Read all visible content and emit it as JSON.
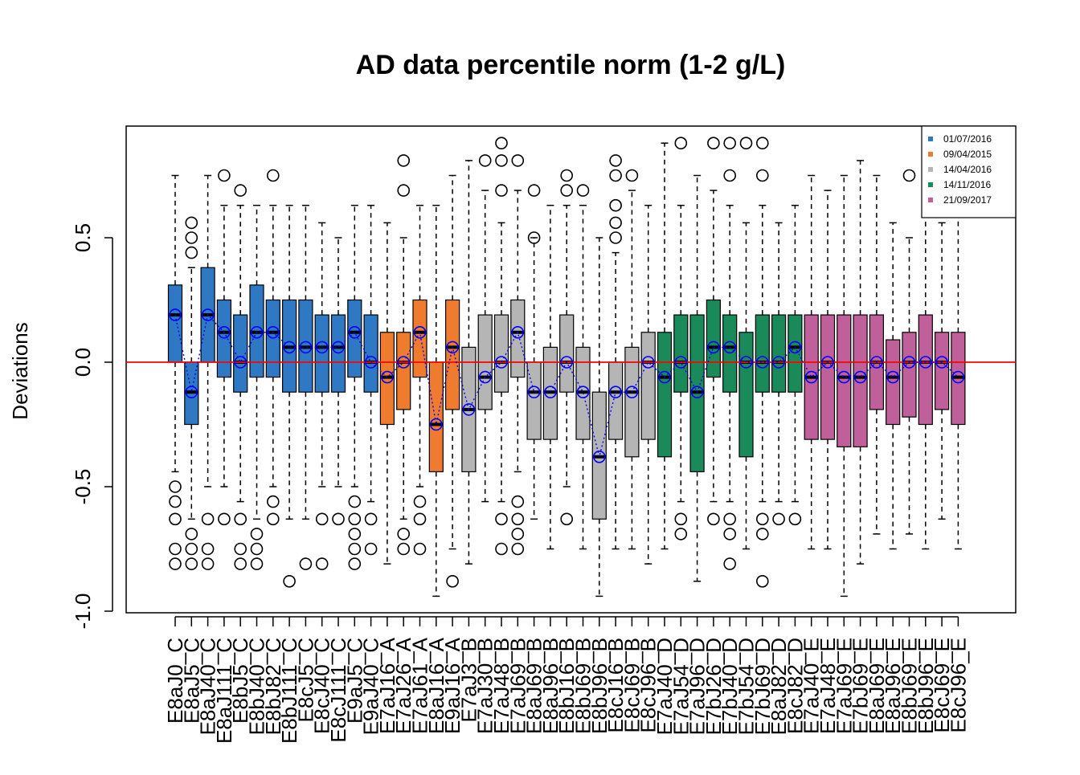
{
  "chart_data": {
    "type": "box",
    "title": "AD data percentile norm (1-2 g/L)",
    "ylabel": "Deviations",
    "xlabel": "",
    "ylim": [
      -1.0,
      0.98
    ],
    "yticks": [
      -1.0,
      -0.5,
      0.0,
      0.5
    ],
    "ytick_labels": [
      "-1.0",
      "-0.5",
      "0.0",
      "0.5"
    ],
    "reference_line": {
      "y": 0.0,
      "color": "#ff0000"
    },
    "mean_line_color": "#0000ff",
    "legend": {
      "position": "top-right",
      "entries": [
        {
          "label": "01/07/2016",
          "color": "#2e78c4"
        },
        {
          "label": "09/04/2015",
          "color": "#ef7b2e"
        },
        {
          "label": "14/04/2016",
          "color": "#b5b5b5"
        },
        {
          "label": "14/11/2016",
          "color": "#1b8a5a"
        },
        {
          "label": "21/09/2017",
          "color": "#c0609a"
        }
      ]
    },
    "groups": {
      "01/07/2016": "#2e78c4",
      "09/04/2015": "#ef7b2e",
      "14/04/2016": "#b5b5b5",
      "14/11/2016": "#1b8a5a",
      "21/09/2017": "#c0609a"
    },
    "boxes": [
      {
        "label": "E8aJ0_C",
        "group": "01/07/2016",
        "q1": 0.0,
        "median": 0.19,
        "q3": 0.31,
        "whisker_low": -0.44,
        "whisker_high": 0.75,
        "mean": 0.19,
        "outliers": [
          -0.5,
          -0.56,
          -0.63,
          -0.75,
          -0.81
        ]
      },
      {
        "label": "E8aJ5_C",
        "group": "01/07/2016",
        "q1": -0.25,
        "median": -0.12,
        "q3": 0.0,
        "whisker_low": -0.63,
        "whisker_high": 0.38,
        "mean": -0.12,
        "outliers": [
          0.44,
          0.5,
          0.56,
          -0.69,
          -0.75,
          -0.81
        ]
      },
      {
        "label": "E8aJ40_C",
        "group": "01/07/2016",
        "q1": 0.0,
        "median": 0.19,
        "q3": 0.38,
        "whisker_low": -0.5,
        "whisker_high": 0.75,
        "mean": 0.19,
        "outliers": [
          -0.63,
          -0.75,
          -0.81
        ]
      },
      {
        "label": "E8aJ111_C",
        "group": "01/07/2016",
        "q1": -0.06,
        "median": 0.12,
        "q3": 0.25,
        "whisker_low": -0.5,
        "whisker_high": 0.63,
        "mean": 0.12,
        "outliers": [
          0.75,
          -0.63
        ]
      },
      {
        "label": "E8bJ5_C",
        "group": "01/07/2016",
        "q1": -0.12,
        "median": 0.0,
        "q3": 0.19,
        "whisker_low": -0.56,
        "whisker_high": 0.63,
        "mean": 0.0,
        "outliers": [
          0.69,
          -0.63,
          -0.75,
          -0.81
        ]
      },
      {
        "label": "E8bJ40_C",
        "group": "01/07/2016",
        "q1": -0.06,
        "median": 0.12,
        "q3": 0.31,
        "whisker_low": -0.63,
        "whisker_high": 0.63,
        "mean": 0.12,
        "outliers": [
          -0.69,
          -0.75,
          -0.81
        ]
      },
      {
        "label": "E8bJ82_C",
        "group": "01/07/2016",
        "q1": -0.06,
        "median": 0.12,
        "q3": 0.25,
        "whisker_low": -0.5,
        "whisker_high": 0.63,
        "mean": 0.12,
        "outliers": [
          0.75,
          -0.56,
          -0.63
        ]
      },
      {
        "label": "E8bJ111_C",
        "group": "01/07/2016",
        "q1": -0.12,
        "median": 0.06,
        "q3": 0.25,
        "whisker_low": -0.63,
        "whisker_high": 0.63,
        "mean": 0.06,
        "outliers": [
          -0.88
        ]
      },
      {
        "label": "E8cJ5_C",
        "group": "01/07/2016",
        "q1": -0.12,
        "median": 0.06,
        "q3": 0.25,
        "whisker_low": -0.63,
        "whisker_high": 0.63,
        "mean": 0.06,
        "outliers": [
          -0.81
        ]
      },
      {
        "label": "E8cJ40_C",
        "group": "01/07/2016",
        "q1": -0.12,
        "median": 0.06,
        "q3": 0.19,
        "whisker_low": -0.5,
        "whisker_high": 0.56,
        "mean": 0.06,
        "outliers": [
          -0.63,
          -0.81
        ]
      },
      {
        "label": "E8cJ111_C",
        "group": "01/07/2016",
        "q1": -0.12,
        "median": 0.06,
        "q3": 0.19,
        "whisker_low": -0.5,
        "whisker_high": 0.5,
        "mean": 0.06,
        "outliers": [
          -0.63
        ]
      },
      {
        "label": "E9aJ5_C",
        "group": "01/07/2016",
        "q1": -0.06,
        "median": 0.12,
        "q3": 0.25,
        "whisker_low": -0.5,
        "whisker_high": 0.63,
        "mean": 0.12,
        "outliers": [
          -0.56,
          -0.63,
          -0.69,
          -0.75,
          -0.81
        ]
      },
      {
        "label": "E9aJ40_C",
        "group": "01/07/2016",
        "q1": -0.12,
        "median": 0.0,
        "q3": 0.19,
        "whisker_low": -0.56,
        "whisker_high": 0.63,
        "mean": 0.0,
        "outliers": [
          -0.63,
          -0.75
        ]
      },
      {
        "label": "E7aJ16_A",
        "group": "09/04/2015",
        "q1": -0.25,
        "median": -0.06,
        "q3": 0.12,
        "whisker_low": -0.81,
        "whisker_high": 0.56,
        "mean": -0.06,
        "outliers": []
      },
      {
        "label": "E7aJ26_A",
        "group": "09/04/2015",
        "q1": -0.19,
        "median": 0.0,
        "q3": 0.12,
        "whisker_low": -0.63,
        "whisker_high": 0.5,
        "mean": 0.0,
        "outliers": [
          0.81,
          0.69,
          -0.69,
          -0.75
        ]
      },
      {
        "label": "E7aJ61_A",
        "group": "09/04/2015",
        "q1": -0.06,
        "median": 0.12,
        "q3": 0.25,
        "whisker_low": -0.5,
        "whisker_high": 0.63,
        "mean": 0.12,
        "outliers": [
          -0.56,
          -0.63,
          -0.75
        ]
      },
      {
        "label": "E8aJ16_A",
        "group": "09/04/2015",
        "q1": -0.44,
        "median": -0.25,
        "q3": 0.0,
        "whisker_low": -0.94,
        "whisker_high": 0.63,
        "mean": -0.25,
        "outliers": []
      },
      {
        "label": "E9aJ16_A",
        "group": "09/04/2015",
        "q1": -0.19,
        "median": 0.06,
        "q3": 0.25,
        "whisker_low": -0.75,
        "whisker_high": 0.75,
        "mean": 0.06,
        "outliers": [
          -0.88
        ]
      },
      {
        "label": "E7aJ3_B",
        "group": "14/04/2016",
        "q1": -0.44,
        "median": -0.19,
        "q3": 0.06,
        "whisker_low": -0.81,
        "whisker_high": 0.81,
        "mean": -0.19,
        "outliers": []
      },
      {
        "label": "E7aJ30_B",
        "group": "14/04/2016",
        "q1": -0.19,
        "median": -0.06,
        "q3": 0.19,
        "whisker_low": -0.56,
        "whisker_high": 0.69,
        "mean": -0.06,
        "outliers": [
          0.81
        ]
      },
      {
        "label": "E7aJ48_B",
        "group": "14/04/2016",
        "q1": -0.12,
        "median": 0.0,
        "q3": 0.19,
        "whisker_low": -0.56,
        "whisker_high": 0.56,
        "mean": 0.0,
        "outliers": [
          0.88,
          0.81,
          0.69,
          -0.63,
          -0.75
        ]
      },
      {
        "label": "E7aJ69_B",
        "group": "14/04/2016",
        "q1": -0.06,
        "median": 0.12,
        "q3": 0.25,
        "whisker_low": -0.44,
        "whisker_high": 0.69,
        "mean": 0.12,
        "outliers": [
          0.81,
          -0.56,
          -0.63,
          -0.69,
          -0.75
        ]
      },
      {
        "label": "E8aJ69_B",
        "group": "14/04/2016",
        "q1": -0.31,
        "median": -0.12,
        "q3": 0.0,
        "whisker_low": -0.63,
        "whisker_high": 0.5,
        "mean": -0.12,
        "outliers": [
          0.69,
          0.5
        ]
      },
      {
        "label": "E8aJ96_B",
        "group": "14/04/2016",
        "q1": -0.31,
        "median": -0.12,
        "q3": 0.06,
        "whisker_low": -0.75,
        "whisker_high": 0.63,
        "mean": -0.12,
        "outliers": []
      },
      {
        "label": "E8bJ16_B",
        "group": "14/04/2016",
        "q1": -0.12,
        "median": 0.0,
        "q3": 0.19,
        "whisker_low": -0.5,
        "whisker_high": 0.63,
        "mean": 0.0,
        "outliers": [
          0.75,
          0.69,
          -0.63
        ]
      },
      {
        "label": "E8bJ69_B",
        "group": "14/04/2016",
        "q1": -0.31,
        "median": -0.12,
        "q3": 0.06,
        "whisker_low": -0.75,
        "whisker_high": 0.63,
        "mean": -0.12,
        "outliers": [
          0.69
        ]
      },
      {
        "label": "E8bJ96_B",
        "group": "14/04/2016",
        "q1": -0.63,
        "median": -0.38,
        "q3": -0.12,
        "whisker_low": -0.94,
        "whisker_high": 0.5,
        "mean": -0.38,
        "outliers": []
      },
      {
        "label": "E8cJ16_B",
        "group": "14/04/2016",
        "q1": -0.31,
        "median": -0.12,
        "q3": 0.0,
        "whisker_low": -0.75,
        "whisker_high": 0.44,
        "mean": -0.12,
        "outliers": [
          0.81,
          0.75,
          0.63,
          0.56,
          0.5
        ]
      },
      {
        "label": "E8cJ69_B",
        "group": "14/04/2016",
        "q1": -0.38,
        "median": -0.12,
        "q3": 0.06,
        "whisker_low": -0.75,
        "whisker_high": 0.69,
        "mean": -0.12,
        "outliers": [
          0.75
        ]
      },
      {
        "label": "E8cJ96_B",
        "group": "14/04/2016",
        "q1": -0.31,
        "median": 0.0,
        "q3": 0.12,
        "whisker_low": -0.81,
        "whisker_high": 0.63,
        "mean": 0.0,
        "outliers": []
      },
      {
        "label": "E7aJ40_D",
        "group": "14/11/2016",
        "q1": -0.38,
        "median": -0.06,
        "q3": 0.12,
        "whisker_low": -0.75,
        "whisker_high": 0.88,
        "mean": -0.06,
        "outliers": []
      },
      {
        "label": "E7aJ54_D",
        "group": "14/11/2016",
        "q1": -0.12,
        "median": 0.0,
        "q3": 0.19,
        "whisker_low": -0.56,
        "whisker_high": 0.63,
        "mean": 0.0,
        "outliers": [
          0.88,
          -0.63,
          -0.69
        ]
      },
      {
        "label": "E7aJ96_D",
        "group": "14/11/2016",
        "q1": -0.44,
        "median": -0.12,
        "q3": 0.19,
        "whisker_low": -0.88,
        "whisker_high": 0.75,
        "mean": -0.12,
        "outliers": []
      },
      {
        "label": "E7bJ26_D",
        "group": "14/11/2016",
        "q1": -0.06,
        "median": 0.06,
        "q3": 0.25,
        "whisker_low": -0.56,
        "whisker_high": 0.69,
        "mean": 0.06,
        "outliers": [
          0.88,
          -0.63
        ]
      },
      {
        "label": "E7bJ40_D",
        "group": "14/11/2016",
        "q1": -0.12,
        "median": 0.06,
        "q3": 0.19,
        "whisker_low": -0.56,
        "whisker_high": 0.63,
        "mean": 0.06,
        "outliers": [
          0.88,
          0.75,
          -0.63,
          -0.69,
          -0.81
        ]
      },
      {
        "label": "E7bJ54_D",
        "group": "14/11/2016",
        "q1": -0.38,
        "median": 0.0,
        "q3": 0.12,
        "whisker_low": -0.75,
        "whisker_high": 0.56,
        "mean": 0.0,
        "outliers": [
          0.88
        ]
      },
      {
        "label": "E7bJ69_D",
        "group": "14/11/2016",
        "q1": -0.12,
        "median": 0.0,
        "q3": 0.19,
        "whisker_low": -0.56,
        "whisker_high": 0.63,
        "mean": 0.0,
        "outliers": [
          0.88,
          0.75,
          -0.63,
          -0.69,
          -0.88
        ]
      },
      {
        "label": "E8aJ82_D",
        "group": "14/11/2016",
        "q1": -0.12,
        "median": 0.0,
        "q3": 0.19,
        "whisker_low": -0.56,
        "whisker_high": 0.56,
        "mean": 0.0,
        "outliers": [
          -0.63
        ]
      },
      {
        "label": "E8cJ82_D",
        "group": "14/11/2016",
        "q1": -0.12,
        "median": 0.06,
        "q3": 0.19,
        "whisker_low": -0.56,
        "whisker_high": 0.63,
        "mean": 0.06,
        "outliers": [
          -0.63
        ]
      },
      {
        "label": "E7aJ40_E",
        "group": "21/09/2017",
        "q1": -0.31,
        "median": -0.06,
        "q3": 0.19,
        "whisker_low": -0.75,
        "whisker_high": 0.75,
        "mean": -0.06,
        "outliers": []
      },
      {
        "label": "E7aJ48_E",
        "group": "21/09/2017",
        "q1": -0.31,
        "median": 0.0,
        "q3": 0.19,
        "whisker_low": -0.75,
        "whisker_high": 0.69,
        "mean": 0.0,
        "outliers": []
      },
      {
        "label": "E7aJ69_E",
        "group": "21/09/2017",
        "q1": -0.34,
        "median": -0.06,
        "q3": 0.19,
        "whisker_low": -0.94,
        "whisker_high": 0.75,
        "mean": -0.06,
        "outliers": []
      },
      {
        "label": "E7bJ69_E",
        "group": "21/09/2017",
        "q1": -0.34,
        "median": -0.06,
        "q3": 0.19,
        "whisker_low": -0.81,
        "whisker_high": 0.81,
        "mean": -0.06,
        "outliers": []
      },
      {
        "label": "E8aJ69_E",
        "group": "21/09/2017",
        "q1": -0.19,
        "median": 0.0,
        "q3": 0.19,
        "whisker_low": -0.69,
        "whisker_high": 0.75,
        "mean": 0.0,
        "outliers": []
      },
      {
        "label": "E8aJ96_E",
        "group": "21/09/2017",
        "q1": -0.25,
        "median": -0.06,
        "q3": 0.09,
        "whisker_low": -0.75,
        "whisker_high": 0.56,
        "mean": -0.06,
        "outliers": []
      },
      {
        "label": "E8bJ69_E",
        "group": "21/09/2017",
        "q1": -0.22,
        "median": 0.0,
        "q3": 0.12,
        "whisker_low": -0.69,
        "whisker_high": 0.5,
        "mean": 0.0,
        "outliers": [
          0.75
        ]
      },
      {
        "label": "E8bJ96_E",
        "group": "21/09/2017",
        "q1": -0.25,
        "median": 0.0,
        "q3": 0.19,
        "whisker_low": -0.75,
        "whisker_high": 0.75,
        "mean": 0.0,
        "outliers": []
      },
      {
        "label": "E8cJ69_E",
        "group": "21/09/2017",
        "q1": -0.19,
        "median": 0.0,
        "q3": 0.12,
        "whisker_low": -0.63,
        "whisker_high": 0.56,
        "mean": 0.0,
        "outliers": [
          0.69,
          0.63
        ]
      },
      {
        "label": "E8cJ96_E",
        "group": "21/09/2017",
        "q1": -0.25,
        "median": -0.06,
        "q3": 0.12,
        "whisker_low": -0.75,
        "whisker_high": 0.63,
        "mean": -0.06,
        "outliers": []
      }
    ]
  }
}
